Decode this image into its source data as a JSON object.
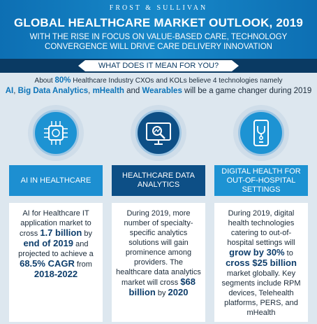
{
  "header": {
    "brand": "FROST & SULLIVAN",
    "title": "GLOBAL HEALTHCARE MARKET OUTLOOK, 2019",
    "subtitle_line1": "WITH THE RISE IN FOCUS ON VALUE-BASED CARE, TECHNOLOGY",
    "subtitle_line2": "CONVERGENCE WILL DRIVE CARE DELIVERY INNOVATION"
  },
  "question": "WHAT DOES IT MEAN FOR YOU?",
  "intro": {
    "pre": "About ",
    "pct": "80%",
    "mid": " Healthcare Industry CXOs and KOLs believe 4 technologies namely",
    "t1": "AI",
    "sep1": ", ",
    "t2": "Big Data Analytics",
    "sep2": ", ",
    "t3": "mHealth",
    "sep3": " and ",
    "t4": "Wearables",
    "post": " will be a game changer during 2019"
  },
  "columns": [
    {
      "icon": "ai-chip-icon",
      "label": "AI IN HEALTHCARE",
      "d1": "AI for Healthcare IT application market to cross ",
      "b1": "1.7 billion",
      "d2": " by ",
      "b2": "end of 2019",
      "d3": " and projected to achieve a ",
      "b3": "68.5% CAGR",
      "d4": " from ",
      "b4": "2018-2022"
    },
    {
      "icon": "data-analytics-icon",
      "label": "HEALTHCARE DATA ANALYTICS",
      "d1": "During 2019, more number of specialty-specific analytics solutions will gain prominence among providers. The healthcare data analytics market will cross ",
      "b1": "$68 billion",
      "d2": " by ",
      "b2": "2020"
    },
    {
      "icon": "digital-health-phone-icon",
      "label": "DIGITAL HEALTH FOR OUT-OF-HOSPITAL SETTINGS",
      "d1": "During 2019, digital health technologies catering to out-of-hospital settings will ",
      "b1": "grow by 30%",
      "d2": " to ",
      "b2": "cross $25 billion",
      "d3": " market globally. Key segments include RPM devices, Telehealth platforms, PERS, and mHealth"
    }
  ]
}
